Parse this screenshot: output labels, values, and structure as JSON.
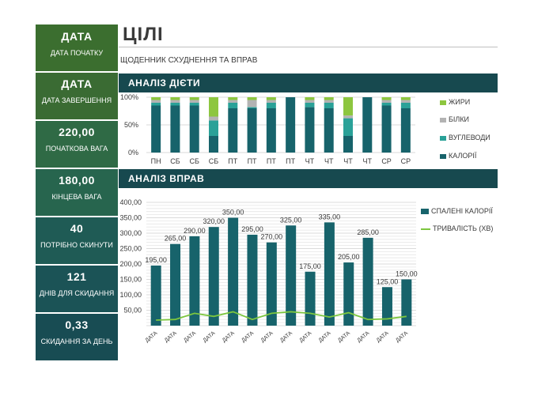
{
  "sidebar": {
    "cards": [
      {
        "value": "ДАТА",
        "label": "ДАТА ПОЧАТКУ"
      },
      {
        "value": "ДАТА",
        "label": "ДАТА ЗАВЕРШЕННЯ"
      },
      {
        "value": "220,00",
        "label": "ПОЧАТКОВА ВАГА"
      },
      {
        "value": "180,00",
        "label": "КІНЦЕВА ВАГА"
      },
      {
        "value": "40",
        "label": "ПОТРІБНО СКИНУТИ"
      },
      {
        "value": "121",
        "label": "ДНІВ ДЛЯ СКИДАННЯ"
      },
      {
        "value": "0,33",
        "label": "СКИДАННЯ ЗА ДЕНЬ"
      }
    ]
  },
  "header": {
    "title": "ЦІЛІ",
    "subtitle": "ЩОДЕННИК СХУДНЕННЯ ТА ВПРАВ"
  },
  "sections": {
    "diet": "АНАЛІЗ ДІЄТИ",
    "exercise": "АНАЛІЗ ВПРАВ"
  },
  "colors": {
    "fat": "#8dc63f",
    "protein": "#b3b3b3",
    "carbs": "#2aa198",
    "calories": "#17636b",
    "band": "#17494f",
    "duration": "#7dc63f"
  },
  "chart_data": [
    {
      "type": "bar",
      "stacked": "percent",
      "categories": [
        "ПН",
        "СБ",
        "СБ",
        "СБ",
        "ПТ",
        "ПТ",
        "ПТ",
        "ПТ",
        "ЧТ",
        "ЧТ",
        "ЧТ",
        "ЧТ",
        "СР",
        "СР"
      ],
      "yticks": [
        "100%",
        "50%",
        "0%"
      ],
      "ylim": [
        0,
        100
      ],
      "legend_position": "right",
      "series": [
        {
          "name": "КАЛОРІЇ",
          "values": [
            85,
            85,
            85,
            30,
            80,
            80,
            80,
            100,
            82,
            80,
            30,
            100,
            85,
            80
          ]
        },
        {
          "name": "ВУГЛЕВОДИ",
          "values": [
            5,
            5,
            5,
            28,
            10,
            2,
            10,
            0,
            8,
            10,
            32,
            0,
            5,
            10
          ]
        },
        {
          "name": "БІЛКИ",
          "values": [
            5,
            5,
            5,
            7,
            5,
            13,
            5,
            0,
            5,
            5,
            5,
            0,
            5,
            5
          ]
        },
        {
          "name": "ЖИРИ",
          "values": [
            5,
            5,
            5,
            35,
            5,
            5,
            5,
            0,
            5,
            5,
            33,
            0,
            5,
            5
          ]
        }
      ]
    },
    {
      "type": "bar",
      "categories": [
        "ДАТА",
        "ДАТА",
        "ДАТА",
        "ДАТА",
        "ДАТА",
        "ДАТА",
        "ДАТА",
        "ДАТА",
        "ДАТА",
        "ДАТА",
        "ДАТА",
        "ДАТА",
        "ДАТА",
        "ДАТА"
      ],
      "yticks": [
        "400,00",
        "350,00",
        "300,00",
        "250,00",
        "200,00",
        "150,00",
        "100,00",
        "50,00"
      ],
      "ylim": [
        0,
        400
      ],
      "legend_position": "right",
      "grid": true,
      "series": [
        {
          "name": "СПАЛЕНІ КАЛОРІЇ",
          "values": [
            195,
            265,
            290,
            320,
            350,
            295,
            270,
            325,
            175,
            335,
            205,
            285,
            125,
            150
          ],
          "labels": [
            "195,00",
            "265,00",
            "290,00",
            "320,00",
            "350,00",
            "295,00",
            "270,00",
            "325,00",
            "175,00",
            "335,00",
            "205,00",
            "285,00",
            "125,00",
            "150,00"
          ]
        },
        {
          "name": "ТРИВАЛІСТЬ (ХВ)",
          "type": "line",
          "values": [
            18,
            20,
            40,
            30,
            45,
            20,
            40,
            45,
            40,
            28,
            42,
            20,
            22,
            30
          ]
        }
      ]
    }
  ]
}
